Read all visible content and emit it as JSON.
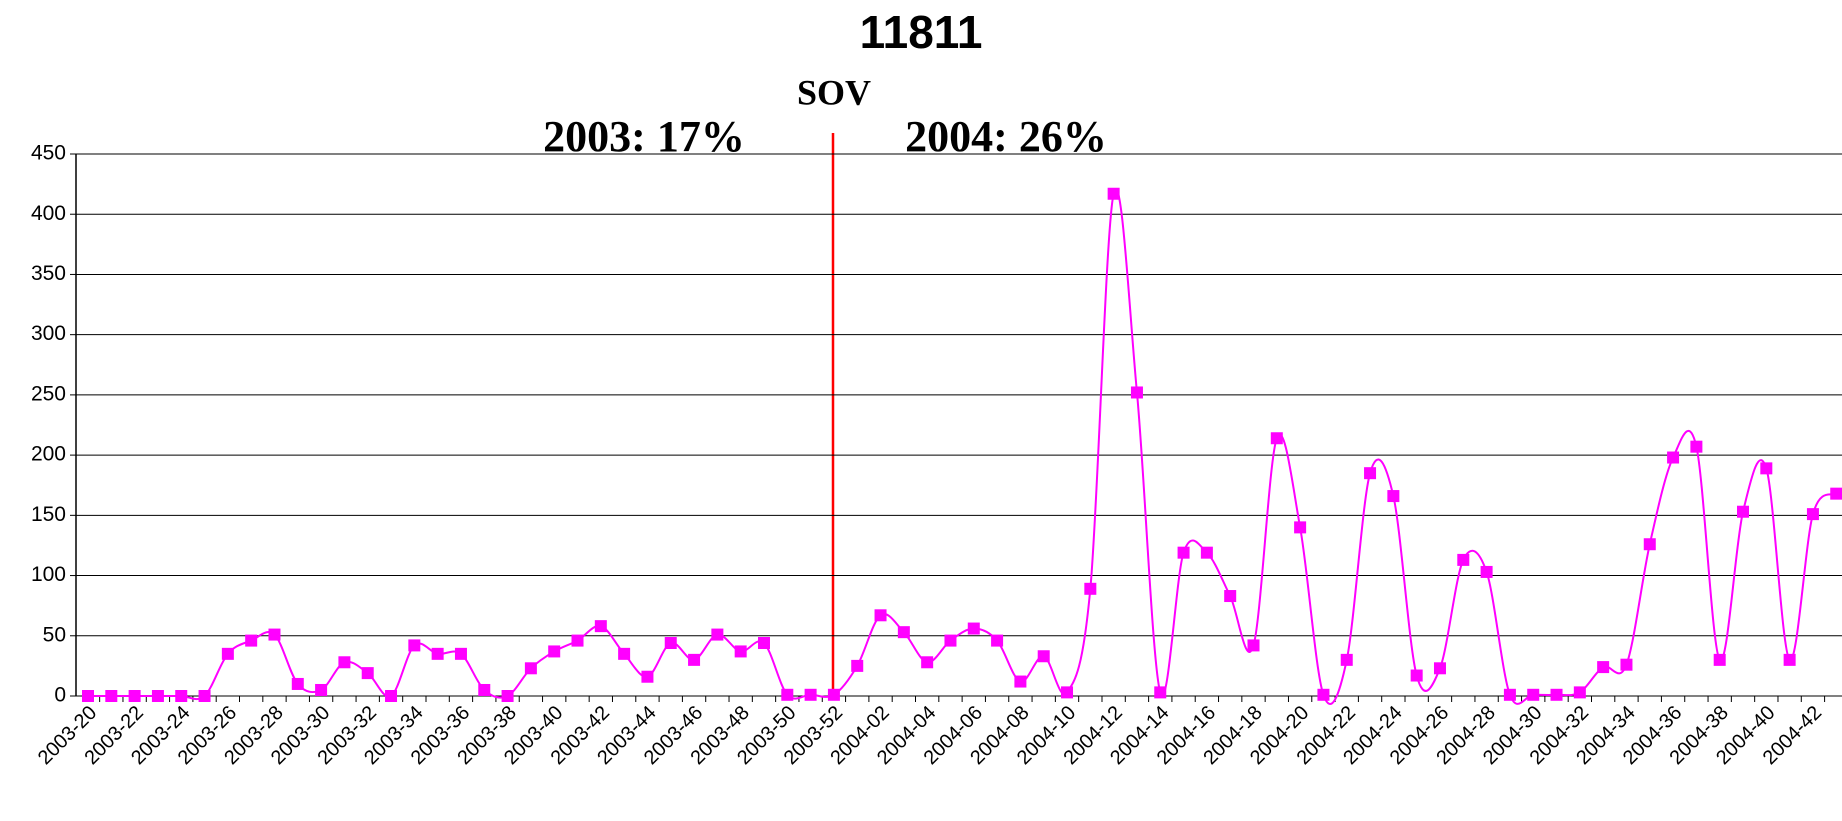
{
  "chart_data": {
    "type": "line",
    "title": "11811",
    "annotations": [
      "SOV",
      "2003: 17%",
      "2004: 26%"
    ],
    "categories": [
      "2003-20",
      null,
      "2003-22",
      null,
      "2003-24",
      null,
      "2003-26",
      null,
      "2003-28",
      null,
      "2003-30",
      null,
      "2003-32",
      null,
      "2003-34",
      null,
      "2003-36",
      null,
      "2003-38",
      null,
      "2003-40",
      null,
      "2003-42",
      null,
      "2003-44",
      null,
      "2003-46",
      null,
      "2003-48",
      null,
      "2003-50",
      null,
      "2003-52",
      null,
      "2004-02",
      null,
      "2004-04",
      null,
      "2004-06",
      null,
      "2004-08",
      null,
      "2004-10",
      null,
      "2004-12",
      null,
      "2004-14",
      null,
      "2004-16",
      null,
      "2004-18",
      null,
      "2004-20",
      null,
      "2004-22",
      null,
      "2004-24",
      null,
      "2004-26",
      null,
      "2004-28",
      null,
      "2004-30",
      null,
      "2004-32",
      null,
      "2004-34",
      null,
      "2004-36",
      null,
      "2004-38",
      null,
      "2004-40",
      null,
      "2004-42",
      null
    ],
    "series": [
      {
        "color": "#ff00ff",
        "values": [
          0,
          0,
          0,
          0,
          0,
          0,
          35,
          46,
          51,
          10,
          5,
          28,
          19,
          0,
          42,
          35,
          35,
          5,
          0,
          23,
          37,
          46,
          58,
          35,
          16,
          44,
          30,
          51,
          37,
          44,
          1,
          1,
          1,
          25,
          67,
          53,
          28,
          46,
          56,
          46,
          12,
          33,
          3,
          89,
          417,
          252,
          3,
          119,
          119,
          83,
          42,
          214,
          140,
          1,
          30,
          185,
          166,
          17,
          23,
          113,
          103,
          1,
          1,
          1,
          3,
          24,
          26,
          126,
          198,
          207,
          30,
          153,
          189,
          30,
          151,
          168
        ]
      }
    ],
    "ylim": [
      0,
      450
    ],
    "yticks": [
      0,
      50,
      100,
      150,
      200,
      250,
      300,
      350,
      400,
      450
    ],
    "grid": true
  }
}
